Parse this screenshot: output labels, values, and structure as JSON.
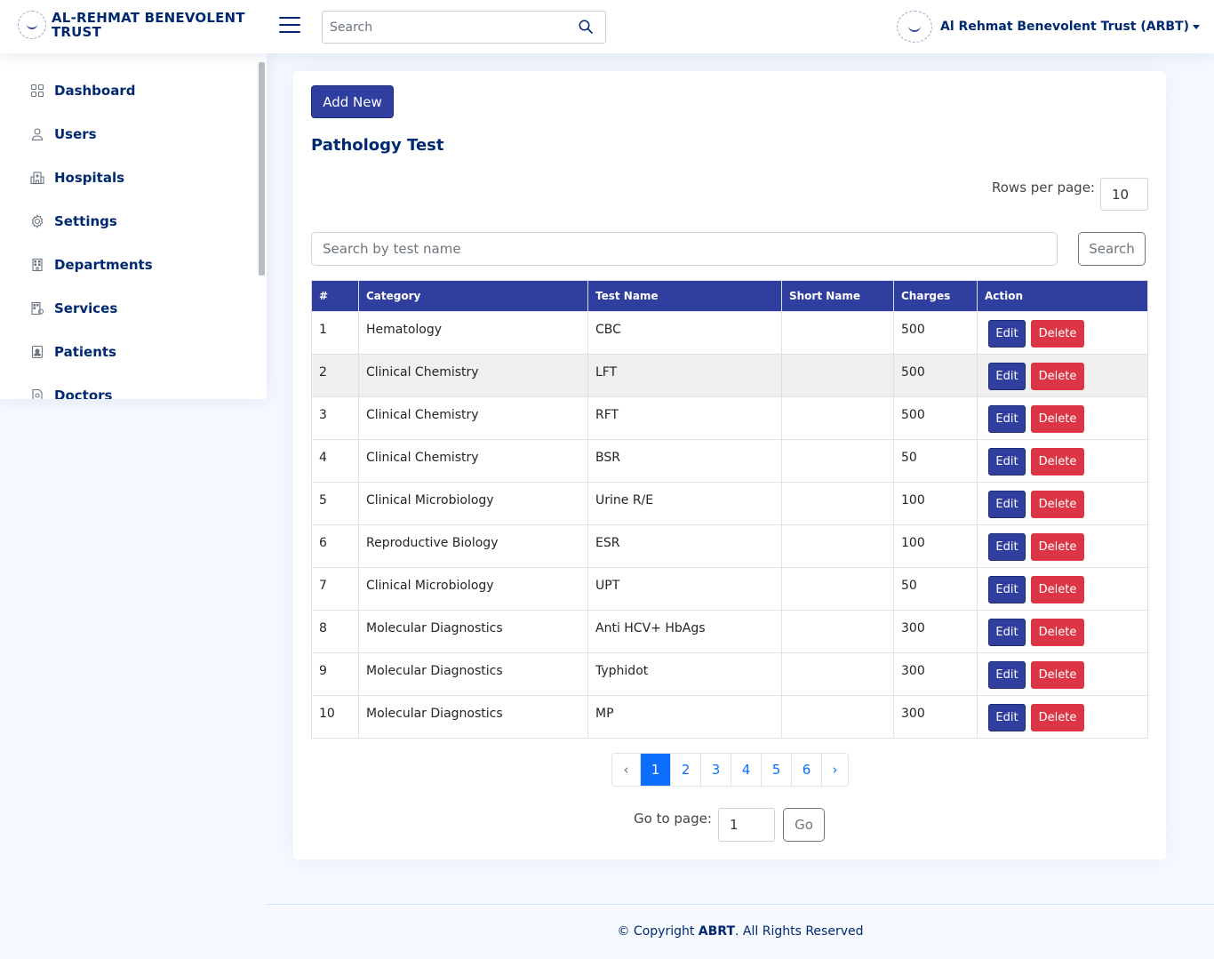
{
  "header": {
    "logo_text": "AL-REHMAT BENEVOLENT TRUST",
    "search_placeholder": "Search",
    "profile_name": "Al Rehmat Benevolent Trust (ARBT)"
  },
  "sidebar": {
    "items": [
      {
        "label": "Dashboard",
        "icon": "grid-icon"
      },
      {
        "label": "Users",
        "icon": "person-icon"
      },
      {
        "label": "Hospitals",
        "icon": "hospital-icon"
      },
      {
        "label": "Settings",
        "icon": "gear-icon"
      },
      {
        "label": "Departments",
        "icon": "building-icon"
      },
      {
        "label": "Services",
        "icon": "building-gear-icon"
      },
      {
        "label": "Patients",
        "icon": "person-badge-icon"
      },
      {
        "label": "Doctors",
        "icon": "file-person-icon"
      }
    ]
  },
  "main": {
    "add_button": "Add New",
    "title": "Pathology Test",
    "rows_label": "Rows per page:",
    "rows_value": "10",
    "search_placeholder": "Search by test name",
    "search_button": "Search",
    "columns": [
      "#",
      "Category",
      "Test Name",
      "Short Name",
      "Charges",
      "Action"
    ],
    "rows": [
      {
        "num": "1",
        "category": "Hematology",
        "test": "CBC",
        "short": "",
        "charges": "500"
      },
      {
        "num": "2",
        "category": "Clinical Chemistry",
        "test": "LFT",
        "short": "",
        "charges": "500"
      },
      {
        "num": "3",
        "category": "Clinical Chemistry",
        "test": "RFT",
        "short": "",
        "charges": "500"
      },
      {
        "num": "4",
        "category": "Clinical Chemistry",
        "test": "BSR",
        "short": "",
        "charges": "50"
      },
      {
        "num": "5",
        "category": "Clinical Microbiology",
        "test": "Urine R/E",
        "short": "",
        "charges": "100"
      },
      {
        "num": "6",
        "category": "Reproductive Biology",
        "test": "ESR",
        "short": "",
        "charges": "100"
      },
      {
        "num": "7",
        "category": "Clinical Microbiology",
        "test": "UPT",
        "short": "",
        "charges": "50"
      },
      {
        "num": "8",
        "category": "Molecular Diagnostics",
        "test": "Anti HCV+ HbAgs",
        "short": "",
        "charges": "300"
      },
      {
        "num": "9",
        "category": "Molecular Diagnostics",
        "test": "Typhidot",
        "short": "",
        "charges": "300"
      },
      {
        "num": "10",
        "category": "Molecular Diagnostics",
        "test": "MP",
        "short": "",
        "charges": "300"
      }
    ],
    "edit_label": "Edit",
    "delete_label": "Delete",
    "pagination": {
      "prev": "‹",
      "pages": [
        "1",
        "2",
        "3",
        "4",
        "5",
        "6"
      ],
      "active": "1",
      "next": "›"
    },
    "goto_label": "Go to page:",
    "goto_value": "1",
    "go_button": "Go"
  },
  "footer": {
    "prefix": "© Copyright ",
    "brand": "ABRT",
    "suffix": ". All Rights Reserved"
  },
  "colors": {
    "primary": "#303f9f",
    "danger": "#dc3545",
    "active_page": "#0d6efd",
    "nav_text": "#012970"
  }
}
